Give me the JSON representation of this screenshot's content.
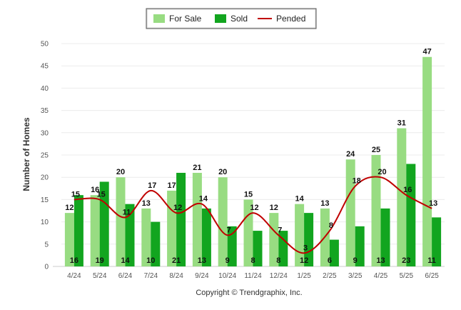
{
  "chart_data": {
    "type": "bar",
    "categories": [
      "4/24",
      "5/24",
      "6/24",
      "7/24",
      "8/24",
      "9/24",
      "10/24",
      "11/24",
      "12/24",
      "1/25",
      "2/25",
      "3/25",
      "4/25",
      "5/25",
      "6/25"
    ],
    "series": [
      {
        "name": "For Sale",
        "type": "bar",
        "color": "#98dc82",
        "values": [
          12,
          16,
          20,
          13,
          17,
          21,
          20,
          15,
          12,
          14,
          13,
          24,
          25,
          31,
          47
        ]
      },
      {
        "name": "Sold",
        "type": "bar",
        "color": "#12a51f",
        "values": [
          16,
          19,
          14,
          10,
          21,
          13,
          9,
          8,
          8,
          12,
          6,
          9,
          13,
          23,
          11
        ]
      },
      {
        "name": "Pended",
        "type": "line",
        "color": "#c00000",
        "values": [
          15,
          15,
          11,
          17,
          12,
          14,
          7,
          12,
          7,
          3,
          8,
          18,
          20,
          16,
          13
        ]
      }
    ],
    "ylabel": "Number of Homes",
    "xlabel": "",
    "ylim": [
      0,
      50
    ],
    "yticks": [
      0,
      5,
      10,
      15,
      20,
      25,
      30,
      35,
      40,
      45,
      50
    ],
    "grid": true,
    "legend_position": "top-center"
  },
  "footer": "Copyright © Trendgraphix, Inc."
}
